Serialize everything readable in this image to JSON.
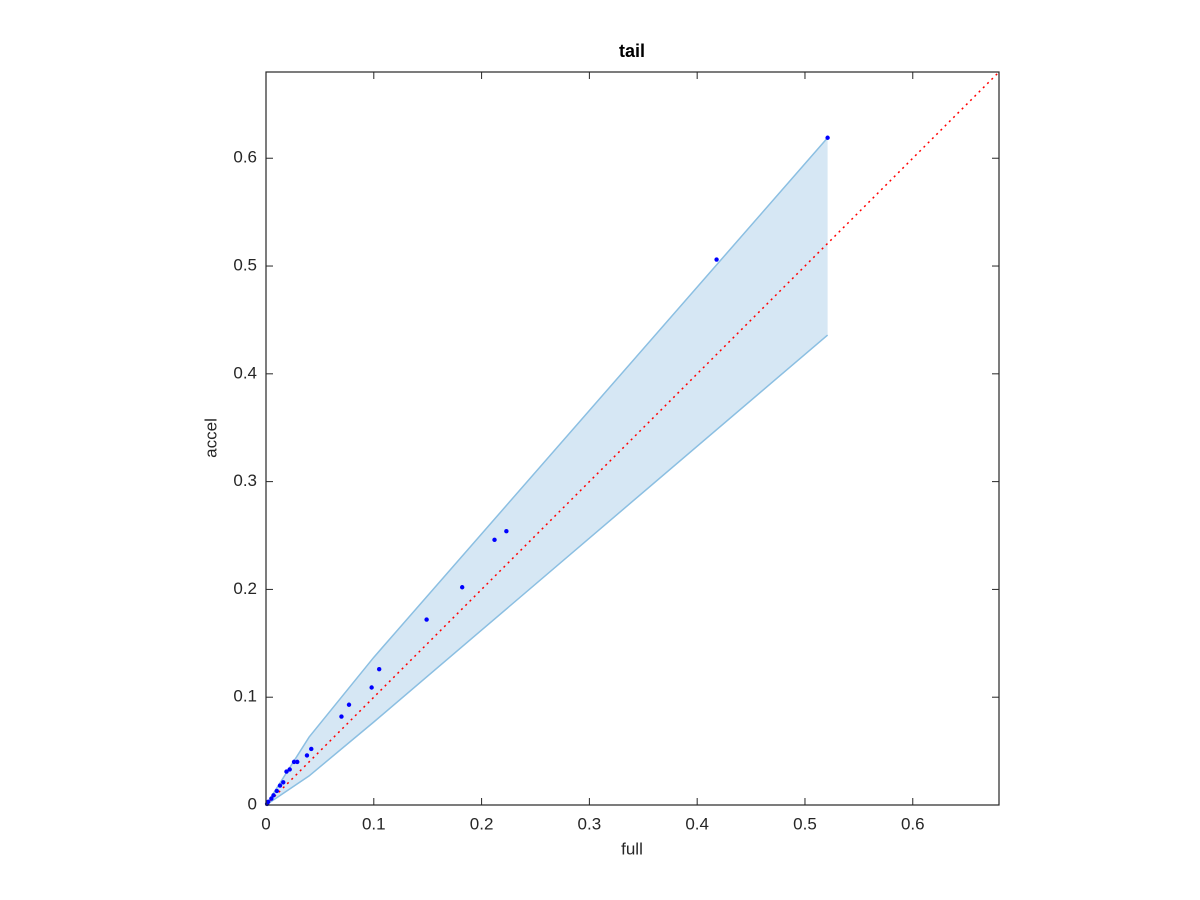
{
  "chart_data": {
    "type": "scatter",
    "title": "tail",
    "x_label": "full",
    "y_label": "accel",
    "xlim": [
      0,
      0.68
    ],
    "ylim": [
      0,
      0.68
    ],
    "xticks": [
      0,
      0.1,
      0.2,
      0.3,
      0.4,
      0.5,
      0.6
    ],
    "yticks": [
      0,
      0.1,
      0.2,
      0.3,
      0.4,
      0.5,
      0.6
    ],
    "points": {
      "color": "#0000ff",
      "x": [
        0.521,
        0.418,
        0.223,
        0.212,
        0.182,
        0.149,
        0.105,
        0.098,
        0.077,
        0.07,
        0.042,
        0.038,
        0.029,
        0.026,
        0.022,
        0.019,
        0.016,
        0.013,
        0.01,
        0.007,
        0.005,
        0.002,
        0.001
      ],
      "y": [
        0.619,
        0.506,
        0.254,
        0.246,
        0.202,
        0.172,
        0.126,
        0.109,
        0.093,
        0.082,
        0.052,
        0.046,
        0.04,
        0.04,
        0.033,
        0.031,
        0.021,
        0.018,
        0.013,
        0.009,
        0.006,
        0.003,
        0.001
      ]
    },
    "band": {
      "color": "#d6e7f4",
      "edge_color": "#8bbfe2",
      "x": [
        0,
        0.04,
        0.1,
        0.521
      ],
      "upper": [
        0,
        0.063,
        0.137,
        0.619
      ],
      "lower": [
        0,
        0.027,
        0.077,
        0.436
      ]
    },
    "reference_line": {
      "color": "#ff0000",
      "x": [
        0,
        0.68
      ],
      "y": [
        0,
        0.68
      ]
    }
  }
}
